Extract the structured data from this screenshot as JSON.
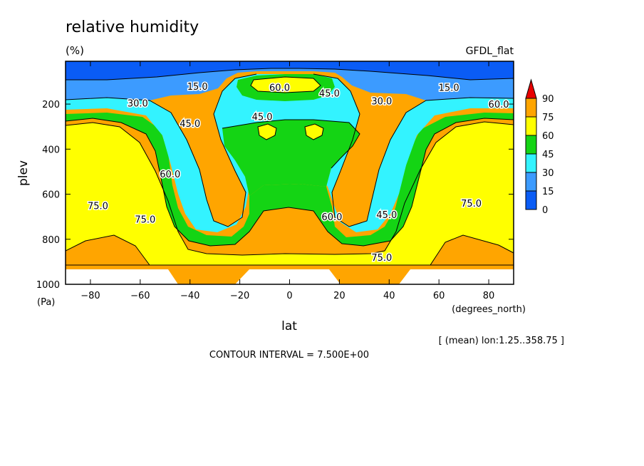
{
  "chart_data": {
    "type": "heatmap",
    "title": "relative humidity",
    "units": "(%)",
    "model_label": "GFDL_flat",
    "xlabel": "lat",
    "xunits": "(degrees_north)",
    "ylabel": "plev",
    "yunits": "(Pa)",
    "xlim": [
      -90,
      90
    ],
    "ylim": [
      1000,
      10
    ],
    "x_ticks": [
      -80,
      -60,
      -40,
      -20,
      0,
      20,
      40,
      60,
      80
    ],
    "y_ticks": [
      200,
      400,
      600,
      800,
      1000
    ],
    "contour_interval_text": "CONTOUR INTERVAL = 7.500E+00",
    "mean_note": "[ (mean) lon:1.25..358.75 ]",
    "colorbar": {
      "levels": [
        "0",
        "15",
        "30",
        "45",
        "60",
        "75",
        "90"
      ],
      "colors": [
        "#0a5cf5",
        "#3c9bff",
        "#33f3ff",
        "#14d414",
        "#ffff00",
        "#ffa500",
        "#e80000"
      ],
      "extend": "max"
    },
    "contour_labels": [
      {
        "text": "15.0",
        "lat": -37,
        "plev": 120
      },
      {
        "text": "15.0",
        "lat": 64,
        "plev": 125
      },
      {
        "text": "30.0",
        "lat": -61,
        "plev": 195
      },
      {
        "text": "30.0",
        "lat": 37,
        "plev": 185
      },
      {
        "text": "60.0",
        "lat": -4,
        "plev": 125
      },
      {
        "text": "45.0",
        "lat": 16,
        "plev": 150
      },
      {
        "text": "45.0",
        "lat": -40,
        "plev": 285
      },
      {
        "text": "45.0",
        "lat": -11,
        "plev": 255
      },
      {
        "text": "60.0",
        "lat": 84,
        "plev": 200
      },
      {
        "text": "60.0",
        "lat": -48,
        "plev": 510
      },
      {
        "text": "60.0",
        "lat": 17,
        "plev": 700
      },
      {
        "text": "45.0",
        "lat": 39,
        "plev": 690
      },
      {
        "text": "75.0",
        "lat": -77,
        "plev": 650
      },
      {
        "text": "75.0",
        "lat": -58,
        "plev": 710
      },
      {
        "text": "75.0",
        "lat": 73,
        "plev": 640
      },
      {
        "text": "75.0",
        "lat": 37,
        "plev": 880
      }
    ]
  }
}
